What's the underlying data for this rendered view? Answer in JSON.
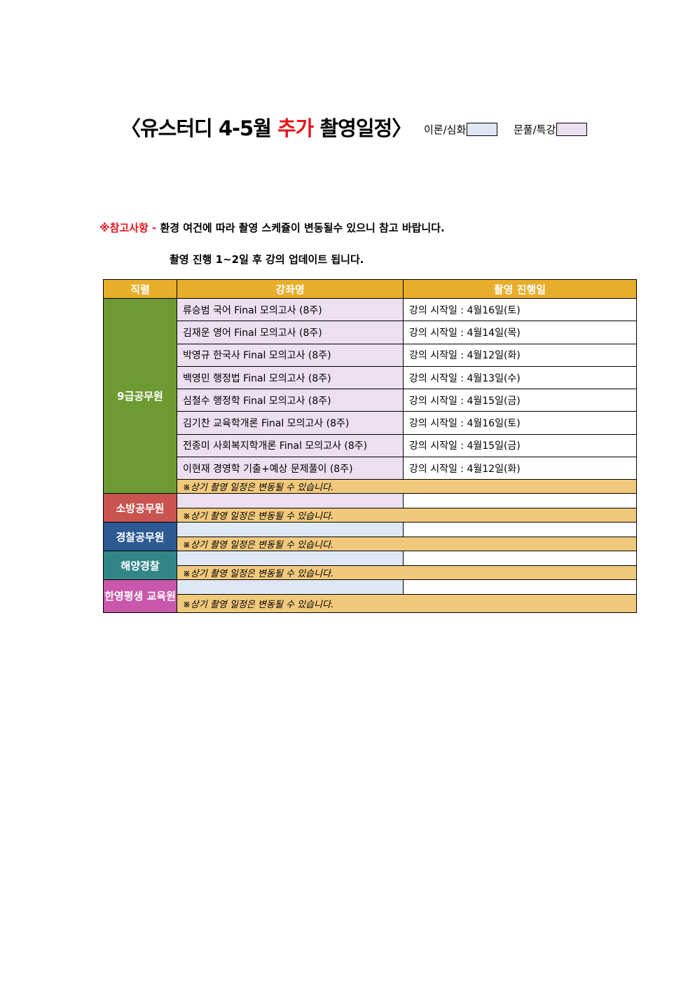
{
  "title": {
    "prefix": "〈유스터디 4-5월 ",
    "highlight": "추가",
    "suffix": " 촬영일정〉"
  },
  "legend": [
    {
      "label": "이론/심화",
      "color": "#dfe6f4"
    },
    {
      "label": "문풀/특강",
      "color": "#ebdff0"
    }
  ],
  "notes": {
    "label": "※참고사항 - ",
    "line1": "환경 여건에 따라 촬영 스케쥴이 변동될수 있으니 참고 바랍니다.",
    "line2": "촬영 진행 1~2일 후 강의 업데이트 됩니다."
  },
  "table": {
    "headers": [
      "직렬",
      "강좌명",
      "촬영 진행일"
    ],
    "disclaimer": "※상기 촬영 일정은 변동될 수 있습니다.",
    "groups": [
      {
        "name": "9급공무원",
        "color": "#6e9a34",
        "rows": [
          {
            "course": "류승범 국어 Final 모의고사 (8주)",
            "date": "강의 시작일 : 4월16일(토)"
          },
          {
            "course": "김재운 영어 Final 모의고사 (8주)",
            "date": "강의 시작일 : 4월14일(목)"
          },
          {
            "course": "박영규 한국사 Final 모의고사 (8주)",
            "date": "강의 시작일 : 4월12일(화)"
          },
          {
            "course": "백영민 행정법 Final 모의고사 (8주)",
            "date": "강의 시작일 : 4월13일(수)"
          },
          {
            "course": "심철수 행정학 Final 모의고사 (8주)",
            "date": "강의 시작일 : 4월15일(금)"
          },
          {
            "course": "김기찬 교육학개론 Final 모의고사 (8주)",
            "date": "강의 시작일 : 4월16일(토)"
          },
          {
            "course": "전종미 사회복지학개론 Final 모의고사 (8주)",
            "date": "강의 시작일 : 4월15일(금)"
          },
          {
            "course": "이현재 경영학 기출+예상 문제풀이 (8주)",
            "date": "강의 시작일 : 4월12일(화)"
          }
        ]
      },
      {
        "name": "소방공무원",
        "color": "#c9534f"
      },
      {
        "name": "경찰공무원",
        "color": "#2e5a94"
      },
      {
        "name": "해양경찰",
        "color": "#338688"
      },
      {
        "name": "한영평생 교육원",
        "color": "#c957ab"
      }
    ]
  }
}
